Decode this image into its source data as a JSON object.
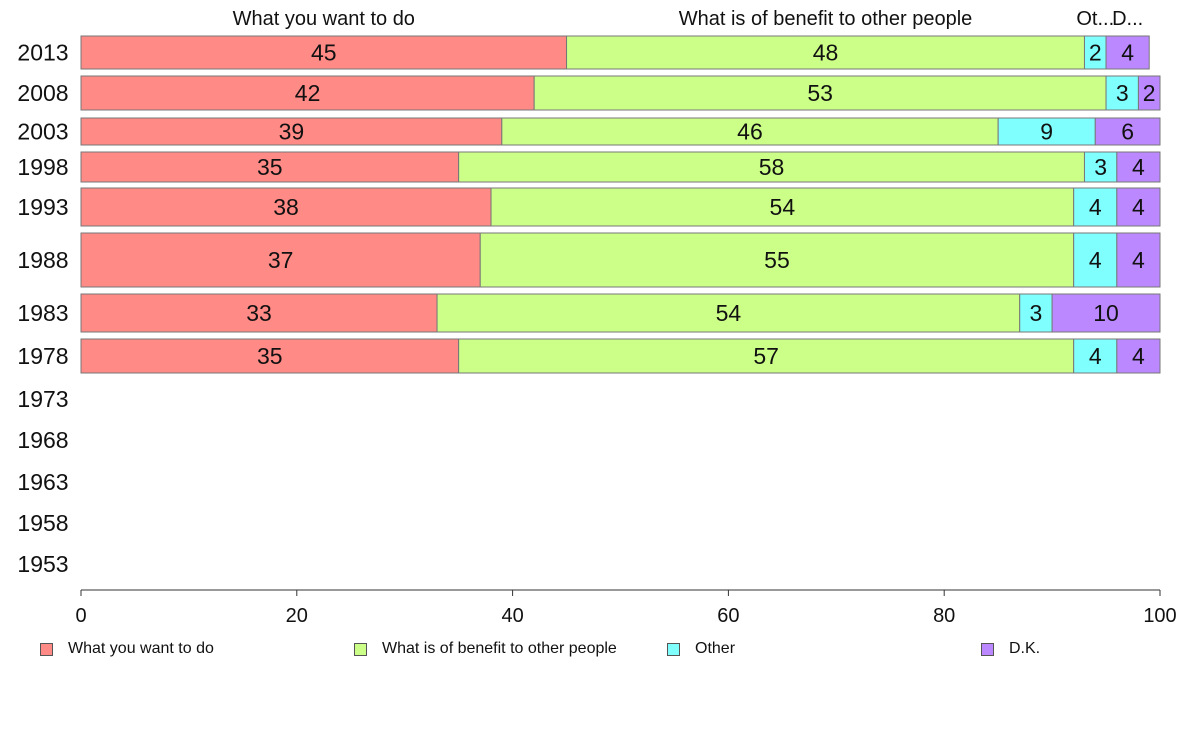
{
  "chart_data": {
    "type": "bar",
    "orientation": "horizontal",
    "stacked": true,
    "categories": [
      "2013",
      "2008",
      "2003",
      "1998",
      "1993",
      "1988",
      "1983",
      "1978",
      "1973",
      "1968",
      "1963",
      "1958",
      "1953"
    ],
    "series": [
      {
        "name": "What you want to do",
        "header": "What you want to do",
        "color": "#ff8a86",
        "values": [
          45,
          42,
          39,
          35,
          38,
          37,
          33,
          35,
          null,
          null,
          null,
          null,
          null
        ]
      },
      {
        "name": "What is of benefit to other people",
        "header": "What is of benefit to other people",
        "color": "#ccff88",
        "values": [
          48,
          53,
          46,
          58,
          54,
          55,
          54,
          57,
          null,
          null,
          null,
          null,
          null
        ]
      },
      {
        "name": "Other",
        "header": "Ot...",
        "color": "#80ffff",
        "values": [
          2,
          3,
          9,
          3,
          4,
          4,
          3,
          4,
          null,
          null,
          null,
          null,
          null
        ]
      },
      {
        "name": "D.K.",
        "header": "D...",
        "color": "#bb88ff",
        "values": [
          4,
          2,
          6,
          4,
          4,
          4,
          10,
          4,
          null,
          null,
          null,
          null,
          null
        ]
      }
    ],
    "xlim": [
      0,
      100
    ],
    "xticks": [
      0,
      20,
      40,
      60,
      80,
      100
    ],
    "legend_position": "bottom",
    "grid": false
  }
}
